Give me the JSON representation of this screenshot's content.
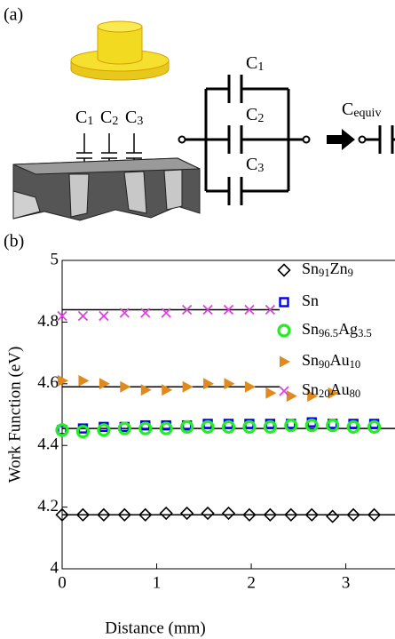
{
  "diagram": {
    "panel_label": "(a)",
    "probe_caps": [
      "C1",
      "C2",
      "C3"
    ],
    "circuit_caps": [
      "C1",
      "C2",
      "C3"
    ],
    "equiv": "Cequiv"
  },
  "chart_data": {
    "type": "scatter",
    "panel_label": "(b)",
    "x_label": "Distance (mm)",
    "y_label": "Work Function (eV)",
    "xlim": [
      0,
      3.52
    ],
    "ylim": [
      4,
      5
    ],
    "xticks": [
      0,
      1,
      2,
      3
    ],
    "yticks": [
      4,
      4.2,
      4.4,
      4.6,
      4.8,
      5
    ],
    "series": [
      {
        "name": "Sn91Zn9",
        "color": "#000000",
        "marker": "diamond",
        "x": [
          0,
          0.22,
          0.44,
          0.66,
          0.88,
          1.1,
          1.32,
          1.54,
          1.76,
          1.98,
          2.2,
          2.42,
          2.64,
          2.86,
          3.08,
          3.3
        ],
        "values": [
          4.175,
          4.175,
          4.175,
          4.175,
          4.175,
          4.18,
          4.18,
          4.18,
          4.18,
          4.175,
          4.175,
          4.175,
          4.175,
          4.17,
          4.175,
          4.175
        ]
      },
      {
        "name": "Sn",
        "color": "#0000ee",
        "marker": "square",
        "x": [
          0,
          0.22,
          0.44,
          0.66,
          0.88,
          1.1,
          1.32,
          1.54,
          1.76,
          1.98,
          2.2,
          2.42,
          2.64,
          2.86,
          3.08,
          3.3
        ],
        "values": [
          4.45,
          4.455,
          4.46,
          4.46,
          4.465,
          4.465,
          4.465,
          4.47,
          4.47,
          4.47,
          4.47,
          4.47,
          4.475,
          4.47,
          4.47,
          4.47
        ]
      },
      {
        "name": "Sn96.5Ag3.5",
        "color": "#22ee22",
        "marker": "circle",
        "x": [
          0,
          0.22,
          0.44,
          0.66,
          0.88,
          1.1,
          1.32,
          1.54,
          1.76,
          1.98,
          2.2,
          2.42,
          2.64,
          2.86,
          3.08,
          3.3
        ],
        "values": [
          4.45,
          4.445,
          4.45,
          4.455,
          4.455,
          4.455,
          4.46,
          4.46,
          4.46,
          4.46,
          4.46,
          4.465,
          4.465,
          4.465,
          4.46,
          4.46
        ]
      },
      {
        "name": "Sn90Au10",
        "color": "#e08a1e",
        "marker": "triangle",
        "x": [
          0,
          0.22,
          0.44,
          0.66,
          0.88,
          1.1,
          1.32,
          1.54,
          1.76,
          1.98,
          2.2,
          2.42,
          2.64,
          2.86
        ],
        "values": [
          4.61,
          4.61,
          4.6,
          4.59,
          4.58,
          4.58,
          4.59,
          4.6,
          4.6,
          4.59,
          4.57,
          4.56,
          4.56,
          4.57
        ]
      },
      {
        "name": "Sn20Au80",
        "color": "#e040e0",
        "marker": "x",
        "x": [
          0,
          0.22,
          0.44,
          0.66,
          0.88,
          1.1,
          1.32,
          1.54,
          1.76,
          1.98,
          2.2
        ],
        "values": [
          4.82,
          4.82,
          4.82,
          4.83,
          4.83,
          4.83,
          4.84,
          4.84,
          4.84,
          4.84,
          4.84
        ]
      }
    ],
    "fit_lines": [
      {
        "value": 4.84,
        "x": [
          0,
          2.3
        ]
      },
      {
        "value": 4.59,
        "x": [
          0,
          2.3
        ]
      },
      {
        "value": 4.455,
        "x": [
          0,
          3.52
        ]
      },
      {
        "value": 4.175,
        "x": [
          0,
          3.52
        ]
      }
    ]
  }
}
